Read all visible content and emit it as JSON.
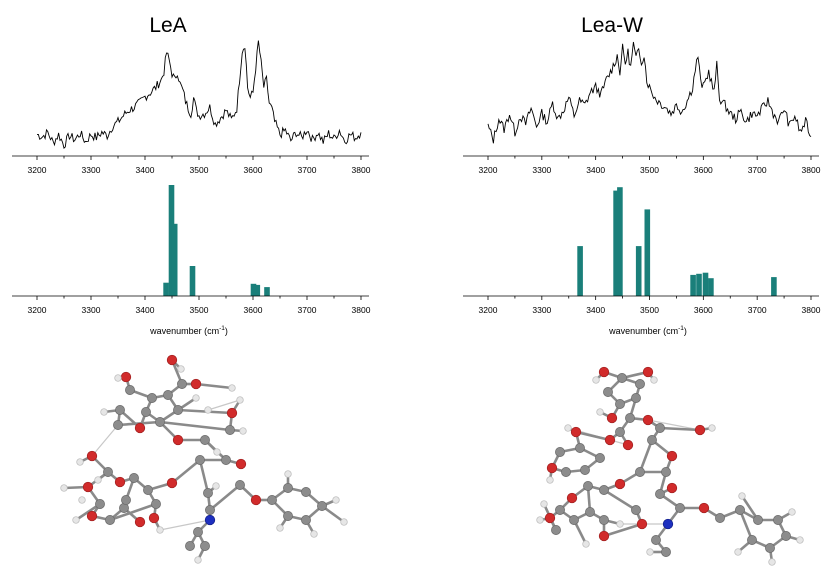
{
  "chart_data": [
    {
      "type": "line",
      "title": "LeA",
      "xlim": [
        3200,
        3800
      ],
      "xticks": [
        3200,
        3300,
        3400,
        3500,
        3600,
        3700,
        3800
      ],
      "description_series": "experimental IR spectrum",
      "x": [
        3200,
        3210,
        3220,
        3230,
        3240,
        3250,
        3260,
        3270,
        3280,
        3290,
        3300,
        3310,
        3320,
        3330,
        3340,
        3350,
        3360,
        3370,
        3380,
        3390,
        3400,
        3410,
        3420,
        3430,
        3435,
        3440,
        3445,
        3450,
        3455,
        3460,
        3465,
        3470,
        3475,
        3480,
        3485,
        3490,
        3495,
        3500,
        3510,
        3520,
        3530,
        3540,
        3550,
        3560,
        3570,
        3580,
        3585,
        3590,
        3595,
        3600,
        3605,
        3610,
        3615,
        3620,
        3625,
        3630,
        3635,
        3640,
        3650,
        3660,
        3670,
        3680,
        3690,
        3700,
        3710,
        3720,
        3730,
        3740,
        3750,
        3760,
        3770,
        3780,
        3790,
        3800
      ],
      "y": [
        0.1,
        0.08,
        0.12,
        0.02,
        0.1,
        0.0,
        0.09,
        0.05,
        0.11,
        0.03,
        0.1,
        0.07,
        0.12,
        0.09,
        0.18,
        0.22,
        0.28,
        0.33,
        0.36,
        0.4,
        0.46,
        0.5,
        0.55,
        0.62,
        0.7,
        0.88,
        0.8,
        0.68,
        0.62,
        0.7,
        0.58,
        0.52,
        0.42,
        0.35,
        0.3,
        0.45,
        0.33,
        0.28,
        0.3,
        0.36,
        0.2,
        0.26,
        0.33,
        0.24,
        0.35,
        0.9,
        0.96,
        0.55,
        0.45,
        0.5,
        0.74,
        0.98,
        0.78,
        0.55,
        0.62,
        0.4,
        0.34,
        0.22,
        0.1,
        0.14,
        0.04,
        0.12,
        0.07,
        0.15,
        0.05,
        0.12,
        0.03,
        0.11,
        0.06,
        0.14,
        0.04,
        0.1,
        0.07,
        0.12
      ]
    },
    {
      "type": "bar",
      "xlabel": "wavenumber (cm",
      "xlabel_sup": "-1",
      "xlabel_tail": ")",
      "xlim": [
        3200,
        3800
      ],
      "xticks": [
        3200,
        3300,
        3400,
        3500,
        3600,
        3700,
        3800
      ],
      "x": [
        3439,
        3449,
        3455,
        3488,
        3601,
        3608,
        3626
      ],
      "values": [
        0.12,
        1.0,
        0.65,
        0.27,
        0.11,
        0.1,
        0.08
      ],
      "color": "#1a7f7a"
    },
    {
      "type": "line",
      "title": "Lea-W",
      "xlim": [
        3200,
        3800
      ],
      "xticks": [
        3200,
        3300,
        3400,
        3500,
        3600,
        3700,
        3800
      ],
      "description_series": "experimental IR spectrum",
      "x": [
        3200,
        3210,
        3220,
        3230,
        3240,
        3250,
        3260,
        3270,
        3280,
        3290,
        3300,
        3310,
        3320,
        3330,
        3340,
        3350,
        3360,
        3370,
        3380,
        3390,
        3400,
        3410,
        3420,
        3430,
        3440,
        3445,
        3450,
        3455,
        3460,
        3465,
        3470,
        3475,
        3480,
        3485,
        3490,
        3495,
        3500,
        3510,
        3520,
        3530,
        3540,
        3550,
        3560,
        3570,
        3580,
        3585,
        3590,
        3595,
        3600,
        3610,
        3620,
        3625,
        3630,
        3640,
        3650,
        3660,
        3670,
        3680,
        3690,
        3700,
        3710,
        3720,
        3730,
        3740,
        3750,
        3760,
        3770,
        3780,
        3790,
        3800
      ],
      "y": [
        0.18,
        0.05,
        0.25,
        0.15,
        0.3,
        0.12,
        0.28,
        0.2,
        0.35,
        0.18,
        0.3,
        0.22,
        0.4,
        0.25,
        0.33,
        0.45,
        0.28,
        0.42,
        0.38,
        0.5,
        0.55,
        0.48,
        0.62,
        0.72,
        0.85,
        0.7,
        0.92,
        0.78,
        0.88,
        0.74,
        0.96,
        0.82,
        0.9,
        0.8,
        0.86,
        0.62,
        0.55,
        0.45,
        0.4,
        0.36,
        0.3,
        0.38,
        0.32,
        0.42,
        0.55,
        0.72,
        0.85,
        0.6,
        0.55,
        0.7,
        0.5,
        0.76,
        0.45,
        0.38,
        0.3,
        0.25,
        0.32,
        0.22,
        0.3,
        0.28,
        0.35,
        0.42,
        0.3,
        0.22,
        0.35,
        0.18,
        0.28,
        0.12,
        0.22,
        0.08
      ]
    },
    {
      "type": "bar",
      "xlabel": "wavenumber (cm",
      "xlabel_sup": "-1",
      "xlabel_tail": ")",
      "xlim": [
        3200,
        3800
      ],
      "xticks": [
        3200,
        3300,
        3400,
        3500,
        3600,
        3700,
        3800
      ],
      "x": [
        3371,
        3438,
        3445,
        3480,
        3496,
        3581,
        3592,
        3604,
        3614,
        3731
      ],
      "values": [
        0.45,
        0.95,
        0.98,
        0.45,
        0.78,
        0.19,
        0.2,
        0.21,
        0.16,
        0.17
      ],
      "color": "#1a7f7a"
    }
  ],
  "molecules": [
    {
      "name": "LeA conformer structure"
    },
    {
      "name": "Lea-W conformer structure"
    }
  ]
}
